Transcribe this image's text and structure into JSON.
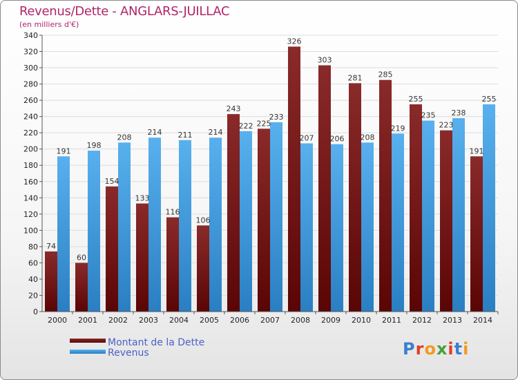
{
  "header": {
    "title": "Revenus/Dette - ANGLARS-JUILLAC",
    "subtitle": "(en milliers d'€)"
  },
  "logo": {
    "text": "Proxiti",
    "colors": [
      "#3a7fd0",
      "#e23b2a",
      "#f29a1e",
      "#46a03a",
      "#e23b2a",
      "#3a7fd0",
      "#f29a1e"
    ]
  },
  "colors": {
    "dette": "#7a2020",
    "dette_dark": "#5a0a0a",
    "revenus": "#4ea7e8",
    "revenus_dark": "#2b83c9",
    "axis": "#555555",
    "grid": "#dcdcdc"
  },
  "chart_data": {
    "type": "bar",
    "title": "Revenus/Dette - ANGLARS-JUILLAC",
    "subtitle": "(en milliers d'€)",
    "categories": [
      "2000",
      "2001",
      "2002",
      "2003",
      "2004",
      "2005",
      "2006",
      "2007",
      "2008",
      "2009",
      "2010",
      "2011",
      "2012",
      "2013",
      "2014"
    ],
    "series": [
      {
        "name": "Montant de la Dette",
        "values": [
          74,
          60,
          154,
          133,
          116,
          106,
          243,
          225,
          326,
          303,
          281,
          285,
          255,
          223,
          191
        ],
        "labels": [
          "74",
          "60",
          "154",
          "133",
          "116",
          "106",
          "243",
          "225",
          "326",
          "303",
          "281",
          "285",
          "255",
          "223",
          "191"
        ]
      },
      {
        "name": "Revenus",
        "values": [
          191,
          198,
          208,
          214,
          211,
          214,
          222,
          233,
          207,
          206,
          208,
          219,
          235,
          238,
          255
        ],
        "labels": [
          "191",
          "198",
          "208",
          "214",
          "211",
          "214",
          "222",
          "233",
          "207",
          "206",
          "208",
          "219",
          "235",
          "238",
          "255"
        ]
      }
    ],
    "ylim": [
      0,
      340
    ],
    "yticks": [
      0,
      20,
      40,
      60,
      80,
      100,
      120,
      140,
      160,
      180,
      200,
      220,
      240,
      260,
      280,
      300,
      320,
      340
    ],
    "grid": true,
    "legend": "bottom-left"
  }
}
